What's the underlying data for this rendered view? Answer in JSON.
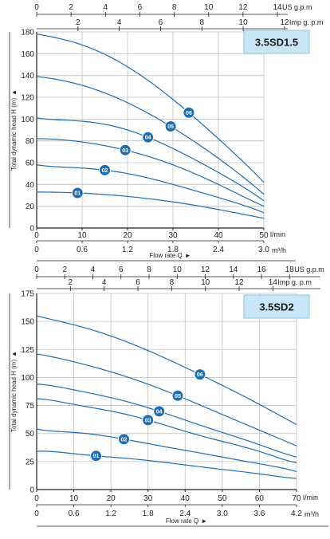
{
  "chart_data": [
    {
      "type": "line",
      "model": "3.5SD1.5",
      "ylabel": "Total dynamic head H (m)",
      "ylim": [
        0,
        180
      ],
      "y_ticks": [
        0,
        20,
        40,
        60,
        80,
        100,
        120,
        140,
        160,
        180
      ],
      "xlabel": "Flow rate Q",
      "xlim": [
        0,
        50
      ],
      "x_ticks": [
        0,
        10,
        20,
        30,
        40,
        50
      ],
      "x_unit": "l/min",
      "m3h_ticks": [
        "0",
        "0.6",
        "1.2",
        "1.8",
        "2.4",
        "3.0"
      ],
      "m3h_unit": "m³/h",
      "usgpm_ticks": [
        "0",
        "2",
        "4",
        "6",
        "8",
        "10",
        "12",
        "14"
      ],
      "usgpm_unit": "US g.p.m",
      "usgpm_per_lpm": 0.2642,
      "impgpm_ticks": [
        "2",
        "4",
        "6",
        "8",
        "10",
        "12"
      ],
      "impgpm_unit": "Imp g. p.m",
      "impgpm_per_lpm": 0.22,
      "grid": true,
      "series": [
        {
          "name": "01",
          "x": [
            0,
            10,
            20,
            30,
            40,
            50
          ],
          "y": [
            33,
            32,
            29,
            24,
            17,
            9
          ],
          "marker_x": 9
        },
        {
          "name": "02",
          "x": [
            0,
            10,
            20,
            30,
            40,
            50
          ],
          "y": [
            58,
            55,
            50,
            40,
            28,
            14
          ],
          "marker_x": 15
        },
        {
          "name": "03",
          "x": [
            0,
            10,
            20,
            30,
            40,
            50
          ],
          "y": [
            82,
            79,
            71,
            58,
            40,
            20
          ],
          "marker_x": 19.5
        },
        {
          "name": "04",
          "x": [
            0,
            10,
            20,
            30,
            40,
            50
          ],
          "y": [
            101,
            98,
            90,
            73,
            51,
            25
          ],
          "marker_x": 24.5
        },
        {
          "name": "05",
          "x": [
            0,
            10,
            20,
            30,
            40,
            50
          ],
          "y": [
            139,
            131,
            115,
            92,
            64,
            31
          ],
          "marker_x": 29.5
        },
        {
          "name": "06",
          "x": [
            0,
            10,
            20,
            30,
            40,
            50
          ],
          "y": [
            178,
            168,
            148,
            118,
            82,
            42
          ],
          "marker_x": 33.5
        }
      ]
    },
    {
      "type": "line",
      "model": "3.5SD2",
      "ylabel": "Total dynamic head H (m)",
      "ylim": [
        0,
        175
      ],
      "y_ticks": [
        0,
        25,
        50,
        75,
        100,
        125,
        150,
        175
      ],
      "xlabel": "Flow rate Q",
      "xlim": [
        0,
        70
      ],
      "x_ticks": [
        0,
        10,
        20,
        30,
        40,
        50,
        60,
        70
      ],
      "x_unit": "l/min",
      "m3h_ticks": [
        "0",
        "0.6",
        "1.2",
        "1.8",
        "2.4",
        "3.0",
        "3.6",
        "4.2"
      ],
      "m3h_unit": "m³/h",
      "usgpm_ticks": [
        "0",
        "2",
        "4",
        "6",
        "8",
        "10",
        "12",
        "14",
        "16",
        "18"
      ],
      "usgpm_unit": "US g.p.m",
      "usgpm_per_lpm": 0.2642,
      "impgpm_ticks": [
        "2",
        "4",
        "6",
        "8",
        "10",
        "12",
        "14"
      ],
      "impgpm_unit": "Imp g. p.m",
      "impgpm_per_lpm": 0.22,
      "grid": true,
      "series": [
        {
          "name": "01",
          "x": [
            0,
            10,
            20,
            30,
            40,
            50,
            60,
            70
          ],
          "y": [
            34,
            32,
            29,
            26,
            22,
            18,
            14,
            10
          ],
          "marker_x": 16
        },
        {
          "name": "02",
          "x": [
            0,
            10,
            20,
            30,
            40,
            50,
            60,
            70
          ],
          "y": [
            54,
            51,
            47,
            41,
            35,
            29,
            23,
            16
          ],
          "marker_x": 23.5
        },
        {
          "name": "03",
          "x": [
            0,
            10,
            20,
            30,
            40,
            50,
            60,
            70
          ],
          "y": [
            81,
            76,
            70,
            62,
            52,
            43,
            34,
            24
          ],
          "marker_x": 30
        },
        {
          "name": "04",
          "x": [
            0,
            10,
            20,
            30,
            40,
            50,
            60,
            70
          ],
          "y": [
            94,
            89,
            82,
            73,
            62,
            51,
            40,
            29
          ],
          "marker_x": 33
        },
        {
          "name": "05",
          "x": [
            0,
            10,
            20,
            30,
            40,
            50,
            60,
            70
          ],
          "y": [
            121,
            114,
            105,
            94,
            81,
            67,
            53,
            39
          ],
          "marker_x": 38
        },
        {
          "name": "06",
          "x": [
            0,
            10,
            20,
            30,
            40,
            50,
            60,
            70
          ],
          "y": [
            155,
            147,
            137,
            124,
            109,
            93,
            76,
            58
          ],
          "marker_x": 44
        }
      ]
    }
  ],
  "style": {
    "curve_color": "#1a6eb5",
    "marker_color": "#1a6eb5",
    "marker_text_color": "#ffffff",
    "badge_bg": "#c9e6f7",
    "badge_border": "#8cc6e8",
    "grid_color": "#c0c0c0",
    "axis_color": "#222222",
    "plot_bg": "#ffffff"
  },
  "arrows": {
    "y": "▲",
    "x": "►"
  }
}
